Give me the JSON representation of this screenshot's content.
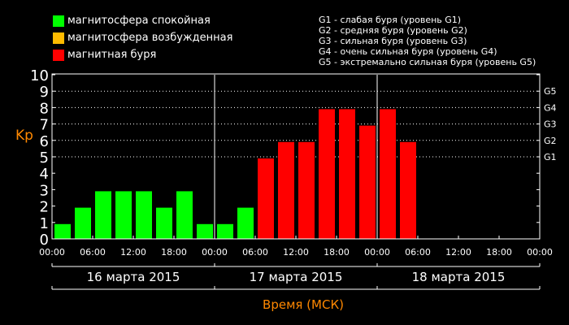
{
  "legend": [
    {
      "label": "магнитосфера спокойная",
      "color": "#00ff00"
    },
    {
      "label": "магнитосфера возбужденная",
      "color": "#ffbb00"
    },
    {
      "label": "магнитная буря",
      "color": "#ff0000"
    }
  ],
  "g_legend": [
    "G1 - слабая буря (уровень G1)",
    "G2 - средняя буря (уровень G2)",
    "G3 - сильная буря (уровень G3)",
    "G4 - очень сильная буря (уровень G4)",
    "G5 - экстремально сильная буря (уровень G5)"
  ],
  "chart_data": {
    "type": "bar",
    "ylabel": "Kp",
    "xlabel": "Время (МСК)",
    "ylim": [
      0,
      10
    ],
    "yticks": [
      "0",
      "1",
      "2",
      "3",
      "4",
      "5",
      "6",
      "7",
      "8",
      "9",
      "10"
    ],
    "g_levels": [
      {
        "label": "G1",
        "kp": 5
      },
      {
        "label": "G2",
        "kp": 6
      },
      {
        "label": "G3",
        "kp": 7
      },
      {
        "label": "G4",
        "kp": 8
      },
      {
        "label": "G5",
        "kp": 9
      }
    ],
    "xticks": [
      "00:00",
      "06:00",
      "12:00",
      "18:00",
      "00:00",
      "06:00",
      "12:00",
      "18:00",
      "00:00",
      "06:00",
      "12:00",
      "18:00",
      "00:00"
    ],
    "days": [
      "16 марта 2015",
      "17 марта 2015",
      "18 марта 2015"
    ],
    "interval_hours": 3,
    "values": [
      1,
      2,
      3,
      3,
      3,
      2,
      3,
      1,
      1,
      2,
      5,
      6,
      6,
      8,
      8,
      7,
      8,
      6
    ],
    "colors": {
      "quiet": "#00ff00",
      "active": "#ffbb00",
      "storm": "#ff0000",
      "axis_title": "#ff8800"
    }
  }
}
